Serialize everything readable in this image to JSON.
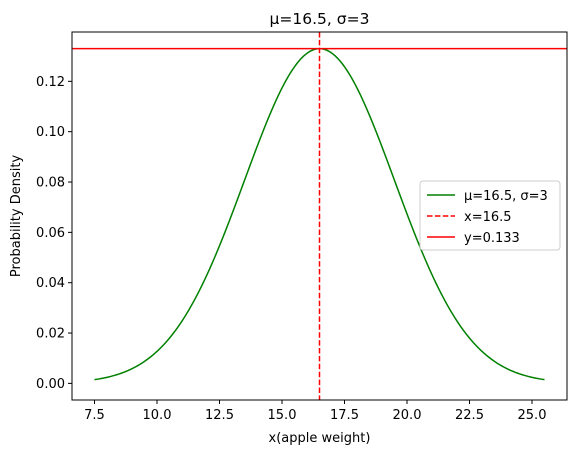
{
  "chart_data": {
    "type": "line",
    "title": "μ=16.5, σ=3",
    "xlabel": "x(apple weight)",
    "ylabel": "Probability Density",
    "xlim": [
      6.6,
      26.4
    ],
    "ylim": [
      -0.0066,
      0.1396
    ],
    "x_ticks": [
      7.5,
      10.0,
      12.5,
      15.0,
      17.5,
      20.0,
      22.5,
      25.0
    ],
    "x_tick_labels": [
      "7.5",
      "10.0",
      "12.5",
      "15.0",
      "17.5",
      "20.0",
      "22.5",
      "25.0"
    ],
    "y_ticks": [
      0.0,
      0.02,
      0.04,
      0.06,
      0.08,
      0.1,
      0.12
    ],
    "y_tick_labels": [
      "0.00",
      "0.02",
      "0.04",
      "0.06",
      "0.08",
      "0.10",
      "0.12"
    ],
    "grid": false,
    "legend_placement": "center-right",
    "series": [
      {
        "name": "μ=16.5, σ=3",
        "kind": "normal_pdf_curve",
        "mean": 16.5,
        "std": 3,
        "x_range": [
          7.5,
          25.5
        ],
        "color": "#008000",
        "style": "solid"
      },
      {
        "name": "x=16.5",
        "kind": "vertical_line",
        "x": 16.5,
        "color": "#ff0000",
        "style": "dashed"
      },
      {
        "name": "y=0.133",
        "kind": "horizontal_line",
        "y": 0.133,
        "color": "#ff0000",
        "style": "solid"
      }
    ]
  }
}
